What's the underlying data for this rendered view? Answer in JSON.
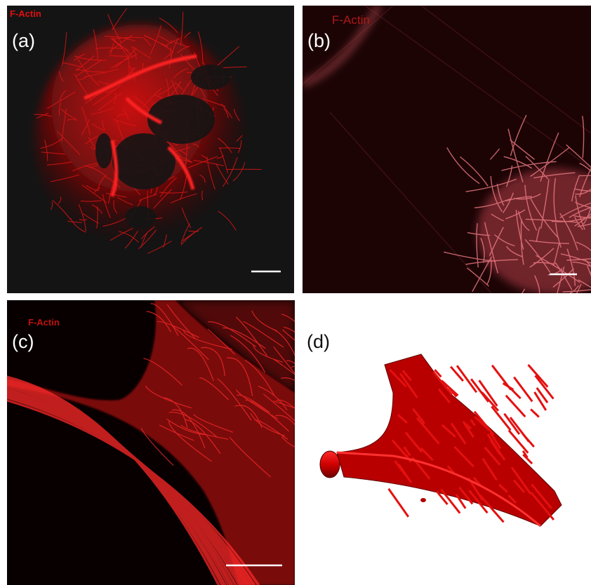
{
  "panels": [
    {
      "stain": "F-Actin",
      "label": "(a)"
    },
    {
      "stain": "F-Actin",
      "label": "(b)"
    },
    {
      "stain": "F-Actin",
      "label": "(c)"
    },
    {
      "label": "(d)"
    }
  ]
}
